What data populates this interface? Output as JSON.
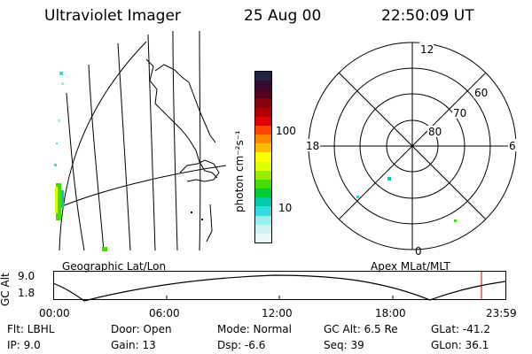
{
  "header": {
    "instrument": "Ultraviolet Imager",
    "date": "25 Aug 00",
    "time": "22:50:09 UT"
  },
  "geo_panel": {
    "label": "Geographic Lat/Lon"
  },
  "polar_panel": {
    "label": "Apex MLat/MLT",
    "mlt_labels": {
      "top": "12",
      "left": "18",
      "right": "6",
      "bottom": "0"
    },
    "lat_labels": [
      "60",
      "70",
      "80"
    ]
  },
  "colorbar": {
    "unit": "photon cm⁻²s⁻¹",
    "ticks": [
      "100",
      "10"
    ],
    "colors": [
      "#222244",
      "#330a33",
      "#550022",
      "#880011",
      "#b00000",
      "#e00000",
      "#ff4400",
      "#ff8800",
      "#ffbb00",
      "#ffff00",
      "#ddff00",
      "#99ee00",
      "#44dd00",
      "#00cc33",
      "#00ccaa",
      "#33dddd",
      "#99eeee",
      "#ccf2f2",
      "#e8f7f7"
    ]
  },
  "timeline": {
    "ylabel": "GC Alt",
    "yticks": [
      "9.0",
      "1.8"
    ],
    "xticks": [
      "00:00",
      "06:00",
      "12:00",
      "18:00",
      "23:59"
    ],
    "current_marker_color": "#cc0000"
  },
  "footer": {
    "flt": "Flt: LBHL",
    "ip": "IP:  9.0",
    "door": "Door: Open",
    "gain": "Gain: 13",
    "mode": "Mode: Normal",
    "dsp": "Dsp:   -6.6",
    "gc_alt": "GC Alt: 6.5 Re",
    "seq": "Seq: 39",
    "glat": "GLat: -41.2",
    "glon": "GLon:  36.1"
  }
}
